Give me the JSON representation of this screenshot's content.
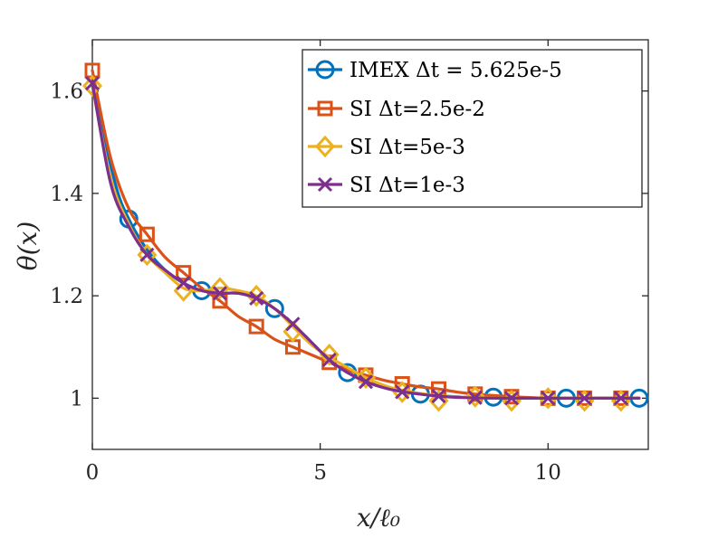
{
  "chart_data": {
    "type": "line",
    "title": "",
    "xlabel": "x/ℓ₀",
    "ylabel": "θ(x)",
    "xlim": [
      0,
      12.2
    ],
    "ylim": [
      0.9,
      1.7
    ],
    "xticks": [
      0,
      5,
      10
    ],
    "xtick_labels": [
      "0",
      "5",
      "10"
    ],
    "yticks": [
      1.0,
      1.2,
      1.4,
      1.6
    ],
    "ytick_labels": [
      "1",
      "1.2",
      "1.4",
      "1.6"
    ],
    "grid": false,
    "legend_position": "top-right",
    "series": [
      {
        "name": "IMEX Δt = 5.625e-5",
        "color": "#0072BD",
        "marker": "circle",
        "x": [
          0,
          0.5,
          0.8,
          1.2,
          1.6,
          2.0,
          2.4,
          2.8,
          3.2,
          3.6,
          4.0,
          4.4,
          4.8,
          5.2,
          5.6,
          6.0,
          6.5,
          7.0,
          7.6,
          8.2,
          9.0,
          10.0,
          11.0,
          12.0
        ],
        "y": [
          1.61,
          1.42,
          1.35,
          1.29,
          1.25,
          1.225,
          1.21,
          1.205,
          1.205,
          1.195,
          1.175,
          1.145,
          1.11,
          1.075,
          1.05,
          1.035,
          1.02,
          1.01,
          1.005,
          1.002,
          1.0,
          1.0,
          1.0,
          1.0
        ],
        "marker_x": [
          0.8,
          2.4,
          4.0,
          5.6,
          7.2,
          8.8,
          10.4,
          12.0
        ],
        "marker_y": [
          1.35,
          1.21,
          1.175,
          1.05,
          1.008,
          1.002,
          1.0,
          1.0
        ]
      },
      {
        "name": "SI Δt=2.5e-2",
        "color": "#D95319",
        "marker": "square",
        "x": [
          0,
          0.4,
          0.8,
          1.2,
          1.6,
          2.0,
          2.4,
          2.8,
          3.2,
          3.6,
          4.0,
          4.4,
          4.8,
          5.2,
          5.6,
          6.0,
          6.4,
          6.8,
          7.2,
          7.6,
          8.0,
          8.4,
          9.0,
          10.0,
          11.0,
          12.0
        ],
        "y": [
          1.64,
          1.47,
          1.37,
          1.32,
          1.275,
          1.245,
          1.215,
          1.19,
          1.16,
          1.14,
          1.115,
          1.1,
          1.085,
          1.07,
          1.055,
          1.045,
          1.035,
          1.028,
          1.022,
          1.018,
          1.012,
          1.008,
          1.004,
          1.0,
          1.0,
          1.0
        ],
        "marker_x": [
          0,
          1.2,
          2.0,
          2.8,
          3.6,
          4.4,
          5.2,
          6.0,
          6.8,
          7.6,
          8.4,
          9.2,
          10.0,
          10.8,
          11.6
        ],
        "marker_y": [
          1.64,
          1.32,
          1.245,
          1.19,
          1.14,
          1.1,
          1.07,
          1.045,
          1.028,
          1.018,
          1.008,
          1.003,
          1.0,
          1.0,
          1.0
        ]
      },
      {
        "name": "SI Δt=5e-3",
        "color": "#EDB120",
        "marker": "diamond",
        "x": [
          0,
          0.4,
          0.8,
          1.2,
          1.6,
          2.0,
          2.4,
          2.8,
          3.2,
          3.6,
          4.0,
          4.4,
          4.8,
          5.2,
          5.6,
          6.0,
          6.5,
          7.0,
          7.6,
          8.2,
          9.0,
          10.0,
          11.0,
          12.0
        ],
        "y": [
          1.61,
          1.43,
          1.34,
          1.28,
          1.245,
          1.215,
          1.21,
          1.215,
          1.21,
          1.2,
          1.175,
          1.14,
          1.105,
          1.08,
          1.06,
          1.04,
          1.022,
          1.012,
          1.005,
          1.002,
          1.0,
          1.0,
          1.0,
          1.0
        ],
        "marker_x": [
          0,
          1.2,
          2.0,
          2.8,
          3.6,
          4.4,
          5.2,
          6.0,
          6.8,
          7.6,
          8.4,
          9.2,
          10.0,
          10.8,
          11.6
        ],
        "marker_y": [
          1.61,
          1.28,
          1.21,
          1.215,
          1.2,
          1.13,
          1.085,
          1.04,
          1.012,
          0.995,
          1.003,
          0.995,
          1.0,
          0.995,
          0.995
        ]
      },
      {
        "name": "SI Δt=1e-3",
        "color": "#7E2F8E",
        "marker": "x",
        "x": [
          0,
          0.4,
          0.8,
          1.2,
          1.6,
          2.0,
          2.4,
          2.8,
          3.2,
          3.6,
          4.0,
          4.4,
          4.8,
          5.2,
          5.6,
          6.0,
          6.5,
          7.0,
          7.6,
          8.2,
          9.0,
          10.0,
          11.0,
          12.0
        ],
        "y": [
          1.615,
          1.42,
          1.335,
          1.28,
          1.25,
          1.225,
          1.21,
          1.205,
          1.205,
          1.195,
          1.175,
          1.145,
          1.11,
          1.075,
          1.05,
          1.032,
          1.018,
          1.01,
          1.004,
          1.001,
          1.0,
          1.0,
          1.0,
          1.0
        ],
        "marker_x": [
          0,
          1.2,
          2.0,
          2.8,
          3.6,
          4.4,
          5.2,
          6.0,
          6.8,
          7.6,
          8.4,
          9.2,
          10.0,
          10.8,
          11.6
        ],
        "marker_y": [
          1.615,
          1.28,
          1.225,
          1.205,
          1.195,
          1.145,
          1.075,
          1.032,
          1.012,
          1.004,
          1.001,
          1.0,
          1.0,
          1.0,
          1.0
        ]
      }
    ]
  }
}
